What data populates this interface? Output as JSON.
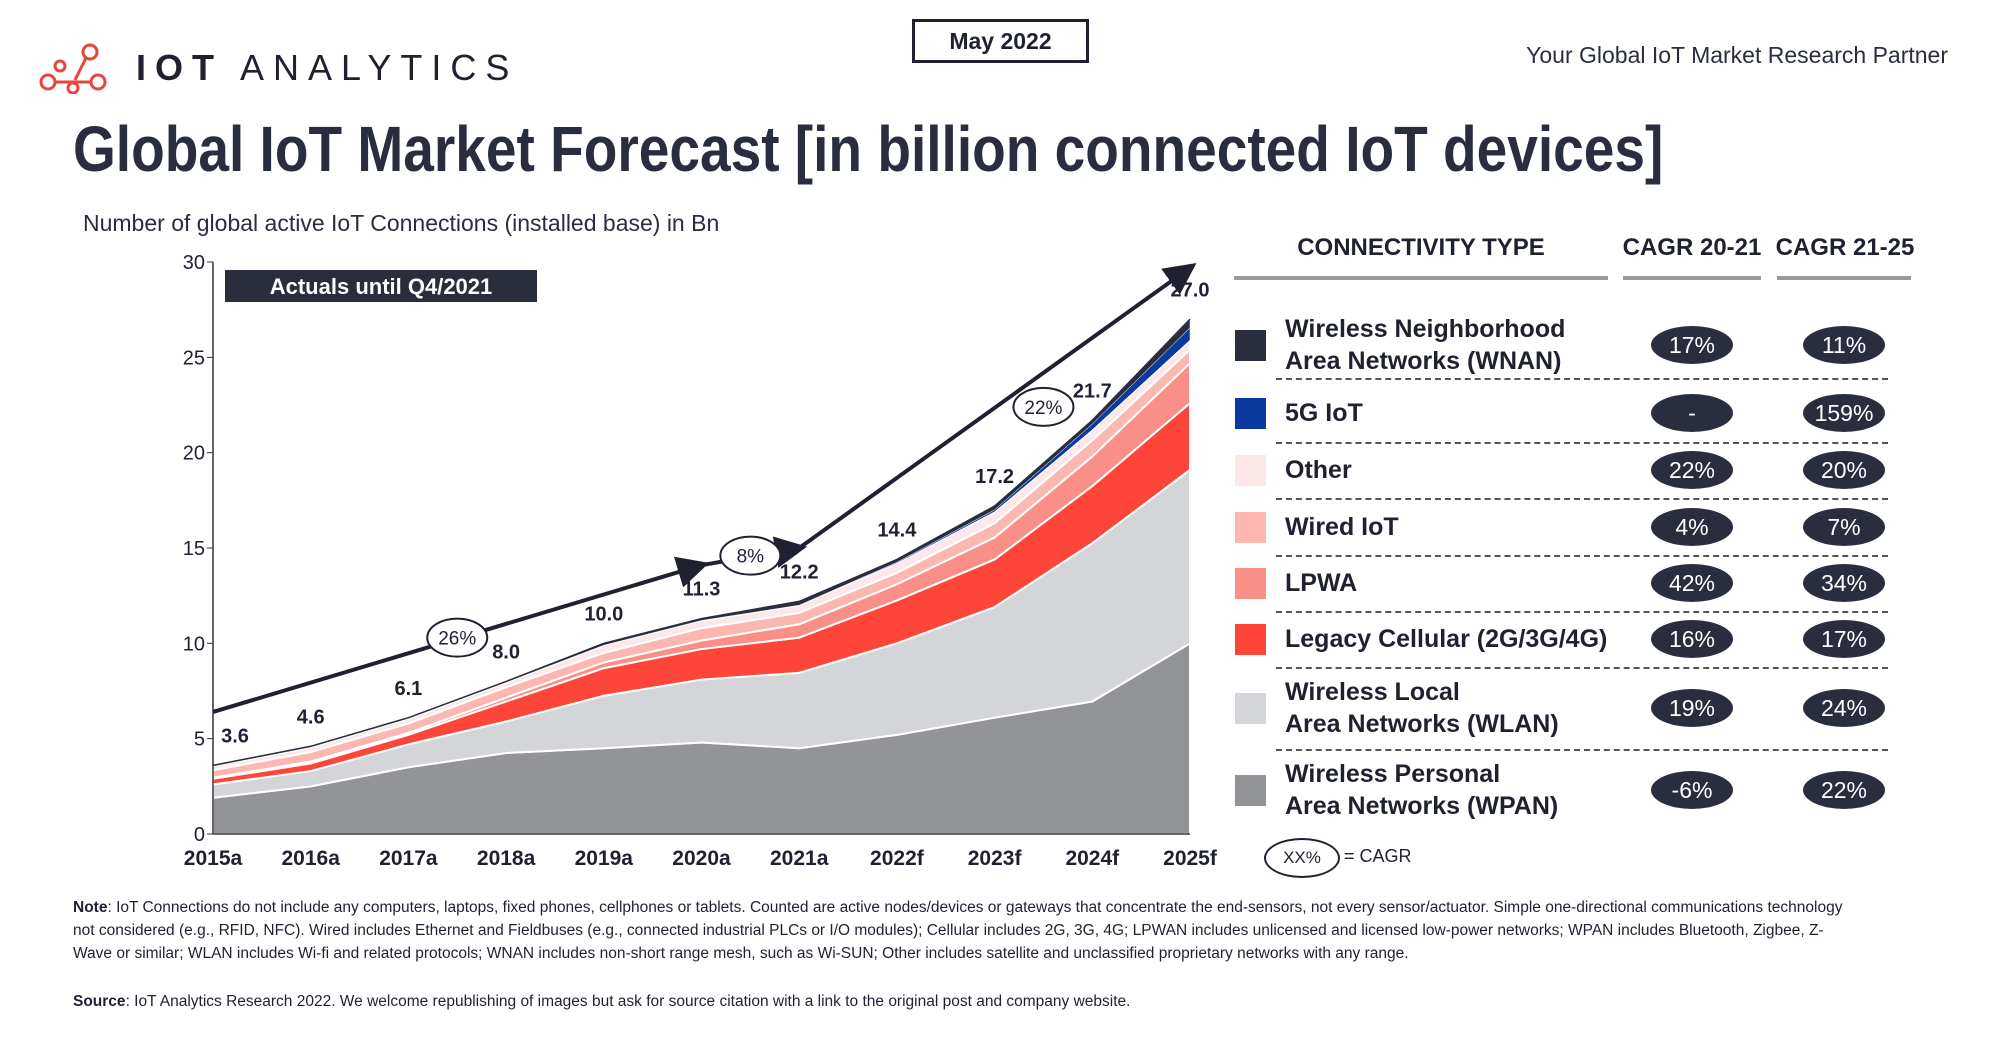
{
  "header": {
    "date_badge": "May 2022",
    "logo_text_bold": "IOT",
    "logo_text_light": "ANALYTICS",
    "tagline": "Your Global IoT Market Research Partner",
    "title": "Global IoT Market Forecast [in billion connected IoT devices]",
    "subtitle": "Number of global active IoT Connections (installed base) in Bn"
  },
  "chart_data": {
    "type": "area",
    "stacked": true,
    "title": "Global IoT Market Forecast [in billion connected IoT devices]",
    "ylabel": "Number of global active IoT Connections (installed base) in Bn",
    "ylim": [
      0,
      30
    ],
    "yticks": [
      0,
      5,
      10,
      15,
      20,
      25,
      30
    ],
    "categories": [
      "2015a",
      "2016a",
      "2017a",
      "2018a",
      "2019a",
      "2020a",
      "2021a",
      "2022f",
      "2023f",
      "2024f",
      "2025f"
    ],
    "totals": [
      3.6,
      4.6,
      6.1,
      8.0,
      10.0,
      11.3,
      12.2,
      14.4,
      17.2,
      21.7,
      27.0
    ],
    "total_labels": [
      "3.6",
      "4.6",
      "6.1",
      "8.0",
      "10.0",
      "11.3",
      "12.2",
      "14.4",
      "17.2",
      "21.7",
      "27.0"
    ],
    "annotation": "Actuals until Q4/2021",
    "trend_cagr": [
      {
        "label": "26%",
        "from": "2015a",
        "to": "2020a"
      },
      {
        "label": "8%",
        "from": "2020a",
        "to": "2021a"
      },
      {
        "label": "22%",
        "from": "2021a",
        "to": "2025f"
      }
    ],
    "series": [
      {
        "name": "Wireless Personal Area Networks (WPAN)",
        "color": "#939498",
        "values": [
          1.9,
          2.5,
          3.5,
          4.25,
          4.5,
          4.8,
          4.5,
          5.2,
          6.1,
          6.95,
          10.0
        ]
      },
      {
        "name": "Wireless Local Area Networks (WLAN)",
        "color": "#d4d5d8",
        "values": [
          0.7,
          0.8,
          1.2,
          1.65,
          2.75,
          3.3,
          3.95,
          4.8,
          5.8,
          8.3,
          9.1
        ]
      },
      {
        "name": "Legacy Cellular (2G/3G/4G)",
        "color": "#fd453a",
        "values": [
          0.3,
          0.4,
          0.5,
          1.05,
          1.45,
          1.6,
          1.85,
          2.25,
          2.5,
          3.0,
          3.5
        ]
      },
      {
        "name": "LPWA",
        "color": "#f98f86",
        "values": [
          0.05,
          0.1,
          0.1,
          0.2,
          0.3,
          0.45,
          0.7,
          0.85,
          1.15,
          1.55,
          2.1
        ]
      },
      {
        "name": "Wired IoT",
        "color": "#fbb7b0",
        "values": [
          0.4,
          0.5,
          0.5,
          0.55,
          0.5,
          0.65,
          0.6,
          0.6,
          0.75,
          0.85,
          0.7
        ]
      },
      {
        "name": "Other",
        "color": "#fce8e8",
        "values": [
          0.2,
          0.25,
          0.25,
          0.25,
          0.4,
          0.4,
          0.4,
          0.5,
          0.6,
          0.55,
          0.5
        ]
      },
      {
        "name": "5G IoT",
        "color": "#0a3aa0",
        "values": [
          0,
          0,
          0,
          0,
          0,
          0,
          0,
          0.05,
          0.1,
          0.3,
          0.65
        ]
      },
      {
        "name": "Wireless Neighborhood Area Networks (WNAN)",
        "color": "#2a2d3e",
        "values": [
          0.05,
          0.05,
          0.05,
          0.05,
          0.1,
          0.1,
          0.2,
          0.15,
          0.2,
          0.2,
          0.45
        ]
      }
    ]
  },
  "legend": {
    "col_type": "CONNECTIVITY TYPE",
    "col_cagr1": "CAGR 20-21",
    "col_cagr2": "CAGR 21-25",
    "rows": [
      {
        "line1": "Wireless Neighborhood",
        "line2": "Area Networks (WNAN)",
        "color": "#2a2d3e",
        "cagr1": "17%",
        "cagr2": "11%"
      },
      {
        "line1": "5G IoT",
        "line2": "",
        "color": "#0a3aa0",
        "cagr1": "-",
        "cagr2": "159%"
      },
      {
        "line1": "Other",
        "line2": "",
        "color": "#fce8e8",
        "cagr1": "22%",
        "cagr2": "20%"
      },
      {
        "line1": "Wired IoT",
        "line2": "",
        "color": "#fbb7b0",
        "cagr1": "4%",
        "cagr2": "7%"
      },
      {
        "line1": "LPWA",
        "line2": "",
        "color": "#f98f86",
        "cagr1": "42%",
        "cagr2": "34%"
      },
      {
        "line1": "Legacy Cellular (2G/3G/4G)",
        "line2": "",
        "color": "#fd453a",
        "cagr1": "16%",
        "cagr2": "17%"
      },
      {
        "line1": "Wireless Local",
        "line2": "Area Networks (WLAN)",
        "color": "#d4d5d8",
        "cagr1": "19%",
        "cagr2": "24%"
      },
      {
        "line1": "Wireless Personal",
        "line2": "Area Networks (WPAN)",
        "color": "#939498",
        "cagr1": "-6%",
        "cagr2": "22%"
      }
    ],
    "key_symbol": "XX%",
    "key_text": "= CAGR"
  },
  "footer": {
    "note_label": "Note",
    "note_text": ": IoT Connections do not include any computers, laptops, fixed phones, cellphones or tablets. Counted are active nodes/devices or gateways that concentrate the end-sensors, not every sensor/actuator. Simple one-directional communications technology not considered (e.g., RFID, NFC). Wired includes Ethernet and Fieldbuses (e.g., connected industrial PLCs or I/O modules); Cellular includes 2G, 3G, 4G;  LPWAN includes unlicensed and licensed low-power networks; WPAN includes Bluetooth, Zigbee, Z-Wave or similar; WLAN includes Wi-fi and related protocols; WNAN includes non-short range mesh, such as Wi-SUN; Other includes satellite and unclassified proprietary networks with any range.",
    "source_label": "Source",
    "source_text": ": IoT Analytics Research 2022. We welcome republishing of images but ask for source citation with a link to the original post and company website."
  }
}
